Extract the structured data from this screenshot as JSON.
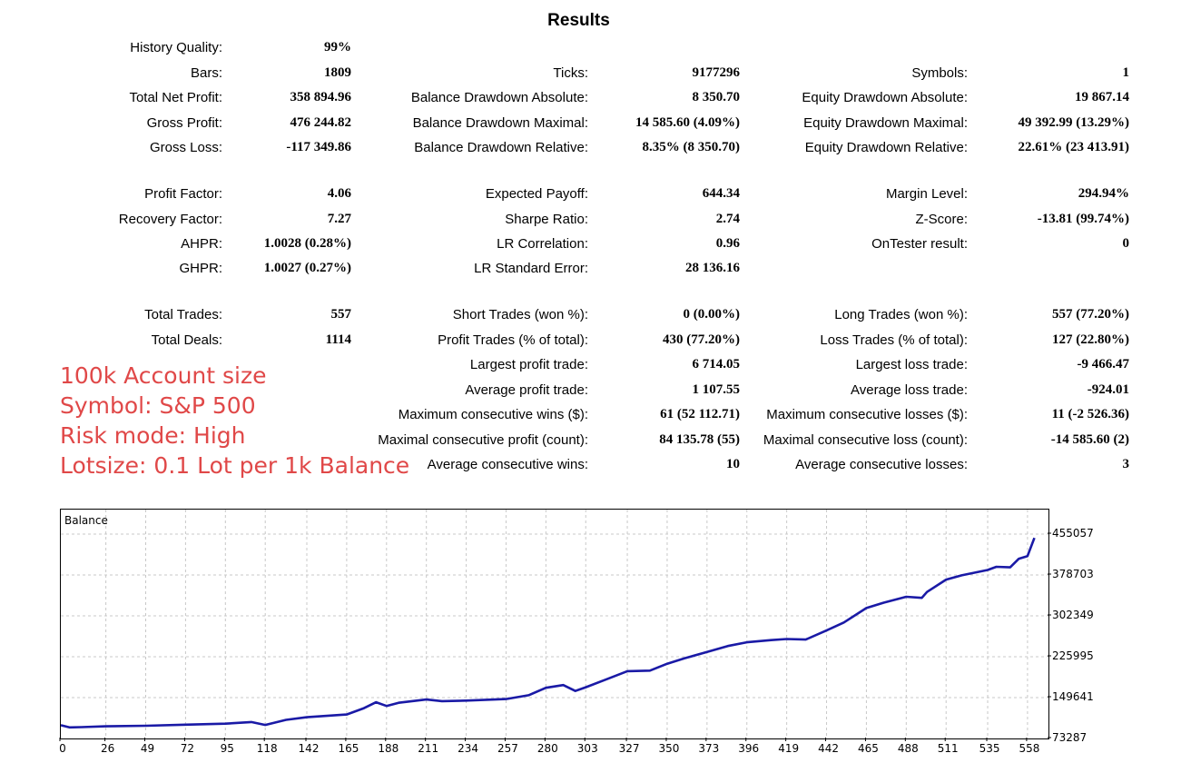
{
  "title": "Results",
  "rows": [
    {
      "cells": [
        {
          "label": "History Quality:",
          "value": "99%"
        },
        null,
        null
      ]
    },
    {
      "cells": [
        {
          "label": "Bars:",
          "value": "1809"
        },
        {
          "label": "Ticks:",
          "value": "9177296"
        },
        {
          "label": "Symbols:",
          "value": "1"
        }
      ]
    },
    {
      "cells": [
        {
          "label": "Total Net Profit:",
          "value": "358 894.96"
        },
        {
          "label": "Balance Drawdown Absolute:",
          "value": "8 350.70"
        },
        {
          "label": "Equity Drawdown Absolute:",
          "value": "19 867.14"
        }
      ]
    },
    {
      "cells": [
        {
          "label": "Gross Profit:",
          "value": "476 244.82"
        },
        {
          "label": "Balance Drawdown Maximal:",
          "value": "14 585.60 (4.09%)"
        },
        {
          "label": "Equity Drawdown Maximal:",
          "value": "49 392.99 (13.29%)"
        }
      ]
    },
    {
      "cells": [
        {
          "label": "Gross Loss:",
          "value": "-117 349.86"
        },
        {
          "label": "Balance Drawdown Relative:",
          "value": "8.35% (8 350.70)"
        },
        {
          "label": "Equity Drawdown Relative:",
          "value": "22.61% (23 413.91)"
        }
      ]
    },
    {
      "cells": [
        {
          "label": "Profit Factor:",
          "value": "4.06"
        },
        {
          "label": "Expected Payoff:",
          "value": "644.34"
        },
        {
          "label": "Margin Level:",
          "value": "294.94%"
        }
      ]
    },
    {
      "cells": [
        {
          "label": "Recovery Factor:",
          "value": "7.27"
        },
        {
          "label": "Sharpe Ratio:",
          "value": "2.74"
        },
        {
          "label": "Z-Score:",
          "value": "-13.81 (99.74%)"
        }
      ]
    },
    {
      "cells": [
        {
          "label": "AHPR:",
          "value": "1.0028 (0.28%)"
        },
        {
          "label": "LR Correlation:",
          "value": "0.96"
        },
        {
          "label": "OnTester result:",
          "value": "0"
        }
      ]
    },
    {
      "cells": [
        {
          "label": "GHPR:",
          "value": "1.0027 (0.27%)"
        },
        {
          "label": "LR Standard Error:",
          "value": "28 136.16"
        },
        null
      ]
    },
    {
      "cells": [
        {
          "label": "Total Trades:",
          "value": "557"
        },
        {
          "label": "Short Trades (won %):",
          "value": "0 (0.00%)"
        },
        {
          "label": "Long Trades (won %):",
          "value": "557 (77.20%)"
        }
      ]
    },
    {
      "cells": [
        {
          "label": "Total Deals:",
          "value": "1114"
        },
        {
          "label": "Profit Trades (% of total):",
          "value": "430 (77.20%)"
        },
        {
          "label": "Loss Trades (% of total):",
          "value": "127 (22.80%)"
        }
      ]
    },
    {
      "cells": [
        null,
        {
          "label": "Largest profit trade:",
          "value": "6 714.05"
        },
        {
          "label": "Largest loss trade:",
          "value": "-9 466.47"
        }
      ]
    },
    {
      "cells": [
        null,
        {
          "label": "Average profit trade:",
          "value": "1 107.55"
        },
        {
          "label": "Average loss trade:",
          "value": "-924.01"
        }
      ]
    },
    {
      "cells": [
        null,
        {
          "label": "Maximum consecutive wins ($):",
          "value": "61 (52 112.71)"
        },
        {
          "label": "Maximum consecutive losses ($):",
          "value": "11 (-2 526.36)"
        }
      ]
    },
    {
      "cells": [
        null,
        {
          "label": "Maximal consecutive profit (count):",
          "value": "84 135.78 (55)"
        },
        {
          "label": "Maximal consecutive loss (count):",
          "value": "-14 585.60 (2)"
        }
      ]
    },
    {
      "cells": [
        null,
        {
          "label": "Average consecutive wins:",
          "value": "10"
        },
        {
          "label": "Average consecutive losses:",
          "value": "3"
        }
      ]
    }
  ],
  "notes": [
    "100k Account size",
    "Symbol: S&P 500",
    "Risk mode: High",
    "Lotsize: 0.1 Lot per 1k Balance"
  ],
  "colors": {
    "note": "#e04848",
    "line": "#1a1aa6",
    "grid": "#c8c8c8"
  },
  "chart_data": {
    "type": "line",
    "title": "Balance",
    "xticks": [
      "0",
      "26",
      "49",
      "72",
      "95",
      "118",
      "142",
      "165",
      "188",
      "211",
      "234",
      "257",
      "280",
      "303",
      "327",
      "350",
      "373",
      "396",
      "419",
      "442",
      "465",
      "488",
      "511",
      "535",
      "558"
    ],
    "yticks": [
      "73287",
      "149641",
      "225995",
      "302349",
      "378703",
      "455057"
    ],
    "xlim": [
      0,
      568
    ],
    "ylim": [
      73287,
      455057
    ],
    "grid": true,
    "series": [
      {
        "x": [
          0,
          5,
          12,
          26,
          49,
          72,
          95,
          110,
          118,
          130,
          142,
          165,
          175,
          182,
          188,
          195,
          211,
          220,
          234,
          257,
          270,
          280,
          290,
          297,
          303,
          315,
          327,
          340,
          350,
          360,
          373,
          385,
          396,
          410,
          419,
          430,
          442,
          452,
          465,
          475,
          488,
          497,
          500,
          511,
          520,
          535,
          540,
          548,
          553,
          558,
          562
        ],
        "values": [
          98000,
          94000,
          94500,
          96000,
          97000,
          99000,
          101000,
          104000,
          98500,
          108000,
          113000,
          118000,
          130000,
          141000,
          134000,
          140000,
          146000,
          143000,
          144000,
          147000,
          154000,
          168000,
          173000,
          162000,
          169000,
          184000,
          199000,
          200000,
          213000,
          223000,
          235000,
          246000,
          253000,
          257000,
          259000,
          258000,
          275000,
          290000,
          317000,
          327000,
          338000,
          336000,
          347000,
          370000,
          378000,
          388000,
          394000,
          393000,
          409000,
          414000,
          448000
        ]
      }
    ]
  }
}
